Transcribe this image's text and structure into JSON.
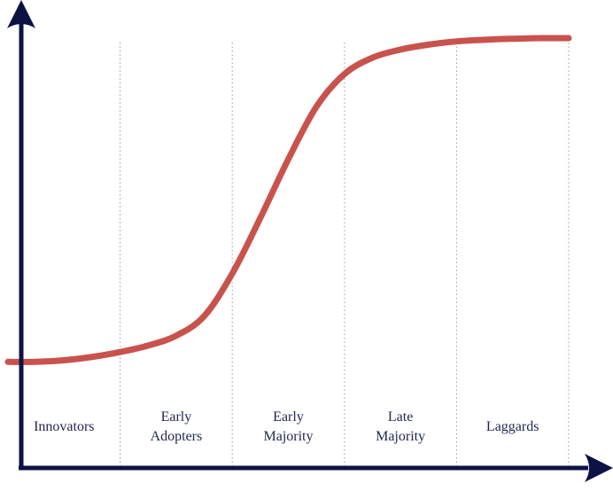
{
  "chart_data": {
    "type": "line",
    "title": "",
    "xlabel": "",
    "ylabel": "",
    "xlim": [
      0,
      5
    ],
    "ylim": [
      0,
      100
    ],
    "grid": false,
    "segments": [
      "Innovators",
      "Early Adopters",
      "Early Majority",
      "Late Majority",
      "Laggards"
    ],
    "series": [
      {
        "color": "#c9524d",
        "x": [
          0.0,
          0.25,
          0.5,
          0.75,
          1.0,
          1.25,
          1.5,
          1.75,
          2.0,
          2.25,
          2.5,
          2.75,
          3.0,
          3.25,
          3.5,
          3.75,
          4.0,
          4.25,
          4.5,
          4.75,
          5.0
        ],
        "y": [
          1,
          1,
          1.5,
          2.5,
          4,
          6,
          9,
          15,
          28,
          45,
          63,
          79,
          89,
          94,
          96.5,
          98,
          99,
          99.5,
          99.8,
          100,
          100
        ]
      }
    ]
  },
  "colors": {
    "axis": "#0d1245",
    "curve": "#c9524d",
    "divider": "#9a9a9a",
    "label": "#1f2650"
  }
}
